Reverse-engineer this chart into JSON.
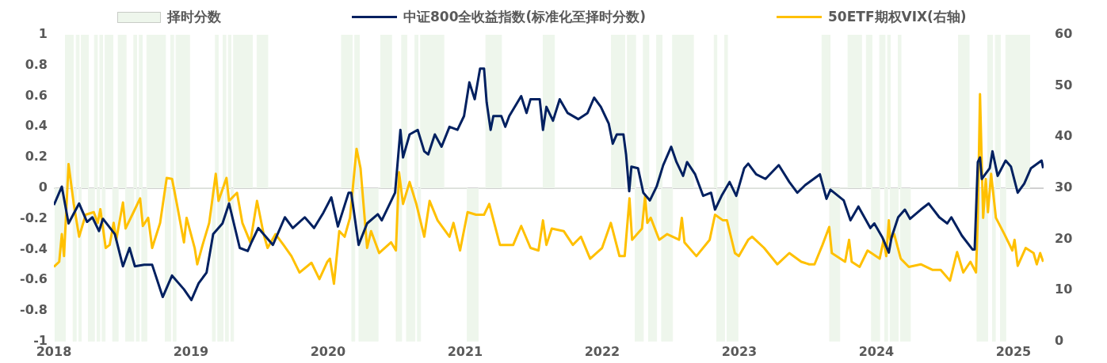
{
  "chart_data": {
    "type": "line",
    "xlim": [
      2018,
      2025.22
    ],
    "xticks": [
      2018,
      2019,
      2020,
      2021,
      2022,
      2023,
      2024,
      2025
    ],
    "ylim": [
      -1,
      1
    ],
    "yticks": [
      -1,
      -0.8,
      -0.6,
      -0.4,
      -0.2,
      0,
      0.2,
      0.4,
      0.6,
      0.8,
      1
    ],
    "y2lim": [
      0,
      60
    ],
    "y2ticks": [
      0,
      10,
      20,
      30,
      40,
      50,
      60
    ],
    "grid": false,
    "legend": "top",
    "ref_lines": [
      {
        "axis": "y",
        "value": 0,
        "color": "#d0d0d0"
      }
    ],
    "marker": "none",
    "line_style": "solid",
    "series": [
      {
        "name": "择时分数",
        "type": "area",
        "color": "#eef6ec",
        "x": [
          2018.0,
          2018.01,
          2018.01,
          2018.084,
          2018.084,
          2018.141,
          2018.141,
          2018.163,
          2018.163,
          2018.183,
          2018.183,
          2018.2,
          2018.2,
          2018.252,
          2018.252,
          2018.296,
          2018.296,
          2018.316,
          2018.316,
          2018.335,
          2018.335,
          2018.354,
          2018.354,
          2018.374,
          2018.374,
          2018.43,
          2018.43,
          2018.469,
          2018.469,
          2018.525,
          2018.525,
          2018.583,
          2018.583,
          2018.603,
          2018.603,
          2018.623,
          2018.623,
          2018.643,
          2018.643,
          2018.678,
          2018.678,
          2018.813,
          2018.813,
          2018.852,
          2018.852,
          2018.872,
          2018.872,
          2018.891,
          2018.891,
          2018.988,
          2018.988,
          2019.158,
          2019.158,
          2019.178,
          2019.178,
          2019.197,
          2019.197,
          2019.234,
          2019.234,
          2019.253,
          2019.253,
          2019.273,
          2019.273,
          2019.292,
          2019.292,
          2019.311,
          2019.311,
          2019.447,
          2019.447,
          2019.482,
          2019.482,
          2019.559,
          2019.559,
          2020.098,
          2020.098,
          2020.175,
          2020.175,
          2020.195,
          2020.195,
          2020.227,
          2020.227,
          2020.365,
          2020.365,
          2020.384,
          2020.384,
          2020.462,
          2020.462,
          2020.499,
          2020.499,
          2020.537,
          2020.537,
          2020.574,
          2020.574,
          2020.634,
          2020.634,
          2020.654,
          2020.654,
          2020.675,
          2020.675,
          2020.843,
          2020.843,
          2021.017,
          2021.017,
          2021.095,
          2021.095,
          2021.151,
          2021.151,
          2021.264,
          2021.264,
          2021.569,
          2021.569,
          2021.651,
          2021.651,
          2022.067,
          2022.067,
          2022.164,
          2022.164,
          2022.184,
          2022.184,
          2022.242,
          2022.242,
          2022.3,
          2022.3,
          2022.339,
          2022.339,
          2022.397,
          2022.397,
          2022.435,
          2022.435,
          2022.513,
          2022.513,
          2022.664,
          2022.664,
          2022.817,
          2022.817,
          2022.836,
          2022.836,
          2022.893,
          2022.893,
          2022.912,
          2022.912,
          2022.99,
          2022.99,
          2023.603,
          2023.603,
          2023.661,
          2023.661,
          2023.733,
          2023.733,
          2023.793,
          2023.793,
          2023.89,
          2023.89,
          2023.927,
          2023.927,
          2023.966,
          2023.966,
          2024.024,
          2024.024,
          2024.062,
          2024.062,
          2024.082,
          2024.082,
          2024.101,
          2024.101,
          2024.159,
          2024.159,
          2024.178,
          2024.178,
          2024.248,
          2024.248,
          2024.599,
          2024.599,
          2024.675,
          2024.675,
          2024.736,
          2024.736,
          2024.812,
          2024.812,
          2024.847,
          2024.847,
          2024.868,
          2024.868,
          2024.905,
          2024.905,
          2024.944,
          2024.944,
          2025.118,
          2025.118
        ],
        "values": [
          0,
          0,
          -1,
          -1,
          1,
          1,
          -1,
          -1,
          1,
          1,
          -1,
          -1,
          1,
          1,
          -1,
          -1,
          1,
          1,
          -1,
          -1,
          1,
          1,
          -1,
          -1,
          1,
          1,
          -1,
          -1,
          1,
          1,
          -1,
          -1,
          1,
          1,
          -1,
          -1,
          1,
          1,
          -1,
          -1,
          1,
          1,
          -1,
          -1,
          1,
          1,
          -1,
          -1,
          1,
          1,
          0,
          0,
          -1,
          -1,
          1,
          1,
          -1,
          -1,
          1,
          1,
          -1,
          -1,
          1,
          1,
          -1,
          -1,
          1,
          1,
          0,
          0,
          1,
          1,
          0,
          0,
          1,
          1,
          -1,
          -1,
          1,
          1,
          -1,
          -1,
          0,
          0,
          1,
          1,
          0,
          0,
          -1,
          -1,
          1,
          1,
          -1,
          -1,
          1,
          1,
          -1,
          -1,
          1,
          1,
          0,
          0,
          -1,
          -1,
          0,
          0,
          1,
          1,
          0,
          0,
          1,
          1,
          0,
          0,
          1,
          1,
          0,
          0,
          1,
          1,
          -1,
          -1,
          1,
          1,
          -1,
          -1,
          1,
          1,
          -1,
          -1,
          1,
          1,
          0,
          0,
          1,
          1,
          -1,
          -1,
          1,
          1,
          -1,
          -1,
          0,
          0,
          1,
          1,
          -1,
          -1,
          0,
          0,
          1,
          1,
          0,
          0,
          1,
          1,
          -1,
          -1,
          1,
          1,
          -1,
          -1,
          1,
          1,
          -1,
          -1,
          1,
          1,
          -1,
          -1,
          0,
          0,
          1,
          1,
          0,
          0,
          -1,
          -1,
          1,
          1,
          -1,
          -1,
          1,
          1,
          -1,
          -1,
          1,
          1,
          0
        ]
      },
      {
        "name": "中证800全收益指数(标准化至择时分数)",
        "color": "#002060",
        "x": [
          2018.0,
          2018.058,
          2018.107,
          2018.184,
          2018.242,
          2018.281,
          2018.329,
          2018.358,
          2018.445,
          2018.504,
          2018.552,
          2018.591,
          2018.659,
          2018.717,
          2018.794,
          2018.862,
          2018.949,
          2019.003,
          2019.056,
          2019.114,
          2019.162,
          2019.23,
          2019.278,
          2019.356,
          2019.414,
          2019.443,
          2019.491,
          2019.598,
          2019.685,
          2019.743,
          2019.83,
          2019.898,
          2019.966,
          2020.024,
          2020.072,
          2020.15,
          2020.169,
          2020.223,
          2020.285,
          2020.363,
          2020.392,
          2020.489,
          2020.528,
          2020.547,
          2020.595,
          2020.654,
          2020.702,
          2020.731,
          2020.779,
          2020.828,
          2020.886,
          2020.944,
          2020.992,
          2021.031,
          2021.07,
          2021.109,
          2021.138,
          2021.157,
          2021.186,
          2021.206,
          2021.264,
          2021.293,
          2021.322,
          2021.409,
          2021.448,
          2021.477,
          2021.544,
          2021.568,
          2021.593,
          2021.641,
          2021.69,
          2021.748,
          2021.825,
          2021.893,
          2021.941,
          2021.99,
          2022.048,
          2022.077,
          2022.106,
          2022.155,
          2022.174,
          2022.197,
          2022.213,
          2022.261,
          2022.3,
          2022.348,
          2022.397,
          2022.445,
          2022.503,
          2022.542,
          2022.59,
          2022.619,
          2022.678,
          2022.736,
          2022.794,
          2022.823,
          2022.871,
          2022.929,
          2022.978,
          2023.036,
          2023.065,
          2023.123,
          2023.191,
          2023.288,
          2023.365,
          2023.423,
          2023.481,
          2023.588,
          2023.636,
          2023.665,
          2023.762,
          2023.811,
          2023.869,
          2023.956,
          2023.985,
          2024.043,
          2024.091,
          2024.111,
          2024.159,
          2024.208,
          2024.246,
          2024.324,
          2024.382,
          2024.459,
          2024.517,
          2024.547,
          2024.624,
          2024.701,
          2024.717,
          2024.74,
          2024.756,
          2024.769,
          2024.827,
          2024.847,
          2024.885,
          2024.943,
          2024.982,
          2025.031,
          2025.079,
          2025.128,
          2025.205,
          2025.217
        ],
        "values": [
          -0.11,
          0.01,
          -0.23,
          -0.1,
          -0.22,
          -0.19,
          -0.28,
          -0.2,
          -0.3,
          -0.51,
          -0.39,
          -0.51,
          -0.5,
          -0.5,
          -0.71,
          -0.57,
          -0.66,
          -0.73,
          -0.62,
          -0.55,
          -0.3,
          -0.23,
          -0.1,
          -0.39,
          -0.41,
          -0.35,
          -0.26,
          -0.37,
          -0.19,
          -0.26,
          -0.19,
          -0.26,
          -0.16,
          -0.06,
          -0.25,
          -0.03,
          -0.03,
          -0.37,
          -0.23,
          -0.17,
          -0.21,
          -0.03,
          0.38,
          0.2,
          0.35,
          0.38,
          0.24,
          0.22,
          0.35,
          0.27,
          0.4,
          0.38,
          0.47,
          0.69,
          0.58,
          0.78,
          0.78,
          0.56,
          0.38,
          0.47,
          0.47,
          0.4,
          0.47,
          0.6,
          0.49,
          0.58,
          0.58,
          0.38,
          0.53,
          0.44,
          0.58,
          0.49,
          0.45,
          0.49,
          0.59,
          0.53,
          0.42,
          0.29,
          0.35,
          0.35,
          0.22,
          -0.02,
          0.14,
          0.13,
          -0.03,
          -0.08,
          0.01,
          0.15,
          0.27,
          0.17,
          0.08,
          0.17,
          0.09,
          -0.05,
          -0.03,
          -0.14,
          -0.05,
          0.04,
          -0.05,
          0.13,
          0.16,
          0.09,
          0.06,
          0.15,
          0.04,
          -0.03,
          0.02,
          0.09,
          -0.07,
          -0.01,
          -0.08,
          -0.21,
          -0.12,
          -0.26,
          -0.23,
          -0.32,
          -0.42,
          -0.32,
          -0.19,
          -0.14,
          -0.2,
          -0.14,
          -0.1,
          -0.19,
          -0.23,
          -0.19,
          -0.31,
          -0.4,
          -0.4,
          0.17,
          0.2,
          0.06,
          0.13,
          0.24,
          0.08,
          0.18,
          0.14,
          -0.03,
          0.03,
          0.13,
          0.18,
          0.13
        ]
      },
      {
        "name": "50ETF期权VIX(右轴)",
        "color": "#ffc000",
        "axis": "y2",
        "x": [
          2018.0,
          2018.039,
          2018.058,
          2018.074,
          2018.107,
          2018.145,
          2018.184,
          2018.232,
          2018.291,
          2018.32,
          2018.339,
          2018.378,
          2018.407,
          2018.436,
          2018.455,
          2018.504,
          2018.523,
          2018.581,
          2018.629,
          2018.649,
          2018.688,
          2018.717,
          2018.775,
          2018.823,
          2018.862,
          2018.901,
          2018.949,
          2018.968,
          2019.027,
          2019.046,
          2019.085,
          2019.133,
          2019.181,
          2019.201,
          2019.259,
          2019.278,
          2019.336,
          2019.375,
          2019.433,
          2019.482,
          2019.53,
          2019.559,
          2019.617,
          2019.675,
          2019.733,
          2019.792,
          2019.879,
          2019.937,
          2019.995,
          2020.014,
          2020.043,
          2020.082,
          2020.121,
          2020.16,
          2020.208,
          2020.237,
          2020.285,
          2020.314,
          2020.373,
          2020.46,
          2020.495,
          2020.518,
          2020.547,
          2020.595,
          2020.644,
          2020.702,
          2020.741,
          2020.799,
          2020.886,
          2020.915,
          2020.963,
          2021.018,
          2021.08,
          2021.138,
          2021.176,
          2021.254,
          2021.351,
          2021.409,
          2021.477,
          2021.535,
          2021.568,
          2021.593,
          2021.632,
          2021.719,
          2021.786,
          2021.845,
          2021.912,
          2021.999,
          2022.063,
          2022.126,
          2022.164,
          2022.199,
          2022.218,
          2022.29,
          2022.313,
          2022.329,
          2022.354,
          2022.416,
          2022.474,
          2022.561,
          2022.581,
          2022.6,
          2022.687,
          2022.784,
          2022.823,
          2022.881,
          2022.91,
          2022.968,
          2022.997,
          2023.065,
          2023.094,
          2023.181,
          2023.278,
          2023.365,
          2023.452,
          2023.51,
          2023.549,
          2023.607,
          2023.656,
          2023.675,
          2023.772,
          2023.801,
          2023.82,
          2023.878,
          2023.936,
          2024.024,
          2024.053,
          2024.072,
          2024.091,
          2024.101,
          2024.13,
          2024.178,
          2024.237,
          2024.324,
          2024.411,
          2024.469,
          2024.537,
          2024.589,
          2024.634,
          2024.686,
          2024.727,
          2024.74,
          2024.756,
          2024.779,
          2024.798,
          2024.814,
          2024.837,
          2024.872,
          2024.934,
          2024.992,
          2025.008,
          2025.031,
          2025.089,
          2025.147,
          2025.17,
          2025.195,
          2025.217
        ],
        "values": [
          14.6,
          15.6,
          21.0,
          16.7,
          34.7,
          26.9,
          20.5,
          24.8,
          25.3,
          23.2,
          25.9,
          18.3,
          18.9,
          23.2,
          19.9,
          27.2,
          22.1,
          25.3,
          28.0,
          22.6,
          24.2,
          18.3,
          23.2,
          32.0,
          31.8,
          26.4,
          19.4,
          24.2,
          18.3,
          15.1,
          18.9,
          23.2,
          32.8,
          27.5,
          32.0,
          27.5,
          29.1,
          23.2,
          19.4,
          27.5,
          21.0,
          18.3,
          21.0,
          18.9,
          16.7,
          13.5,
          15.4,
          12.2,
          15.6,
          16.2,
          11.3,
          21.6,
          20.5,
          24.2,
          37.7,
          33.9,
          18.3,
          21.6,
          17.3,
          19.4,
          17.8,
          33.1,
          26.9,
          31.2,
          26.9,
          20.5,
          27.5,
          23.7,
          20.5,
          23.2,
          17.8,
          25.3,
          24.8,
          24.8,
          26.9,
          18.9,
          18.9,
          22.6,
          18.3,
          17.8,
          23.7,
          18.9,
          22.1,
          21.6,
          18.9,
          20.5,
          16.2,
          18.3,
          23.2,
          16.7,
          16.7,
          28.0,
          19.9,
          22.1,
          28.5,
          23.2,
          24.2,
          19.9,
          21.0,
          19.9,
          24.2,
          19.4,
          16.7,
          19.9,
          24.8,
          23.7,
          23.7,
          17.3,
          16.7,
          19.9,
          20.5,
          18.3,
          15.1,
          17.3,
          15.6,
          15.1,
          15.1,
          18.9,
          22.4,
          17.3,
          15.6,
          19.9,
          15.6,
          14.6,
          17.8,
          16.2,
          19.9,
          16.7,
          23.7,
          19.9,
          21.0,
          16.2,
          14.6,
          15.1,
          14.0,
          14.0,
          11.9,
          17.5,
          13.5,
          15.6,
          13.5,
          24.2,
          48.4,
          24.2,
          31.8,
          25.3,
          32.8,
          24.2,
          21.0,
          17.8,
          19.9,
          14.8,
          18.3,
          17.3,
          15.1,
          17.3,
          15.6
        ]
      }
    ]
  }
}
